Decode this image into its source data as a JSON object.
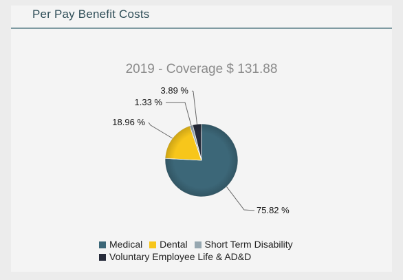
{
  "card": {
    "title": "Per Pay Benefit Costs"
  },
  "colors": {
    "Medical": "#3c6778",
    "Dental": "#f7c61b",
    "Short Term Disability": "#96a7b0",
    "Voluntary Employee Life & AD&D": "#262b3a"
  },
  "chart_data": {
    "type": "pie",
    "title": "2019 - Coverage $ 131.88",
    "categories": [
      "Medical",
      "Dental",
      "Short Term Disability",
      "Voluntary Employee Life & AD&D"
    ],
    "values": [
      75.82,
      18.96,
      1.33,
      3.89
    ],
    "data_labels": [
      "75.82 %",
      "18.96 %",
      "1.33 %",
      "3.89 %"
    ],
    "legend_position": "bottom"
  }
}
